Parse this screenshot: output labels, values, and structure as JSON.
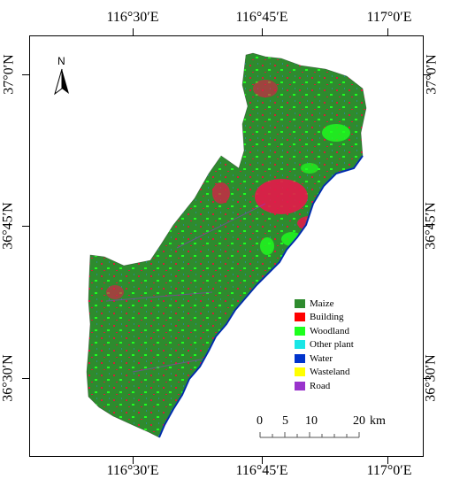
{
  "map": {
    "top_lon_labels": [
      "116°30′E",
      "116°45′E",
      "117°0′E"
    ],
    "bottom_lon_labels": [
      "116°30′E",
      "116°45′E",
      "117°0′E"
    ],
    "left_lat_labels": [
      "37°0′N",
      "36°45′N",
      "36°30′N"
    ],
    "right_lat_labels": [
      "37°0′N",
      "36°45′N",
      "36°30′N"
    ],
    "north_label": "N",
    "north_arrow_icon": "north-arrow-icon"
  },
  "legend": {
    "items": [
      {
        "label": "Maize",
        "color": "#2e8b2e"
      },
      {
        "label": "Building",
        "color": "#ff0000"
      },
      {
        "label": "Woodland",
        "color": "#1eff1e"
      },
      {
        "label": "Other plant",
        "color": "#19e6e6"
      },
      {
        "label": "Water",
        "color": "#0033cc"
      },
      {
        "label": "Wasteland",
        "color": "#ffff00"
      },
      {
        "label": "Road",
        "color": "#9933cc"
      }
    ]
  },
  "scalebar": {
    "tick_labels": [
      "0",
      "5",
      "10",
      "20"
    ],
    "unit": "km"
  }
}
